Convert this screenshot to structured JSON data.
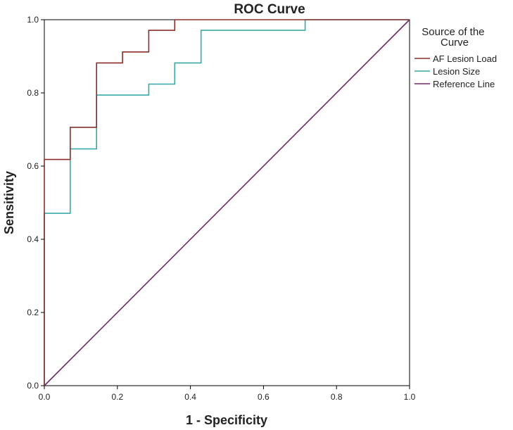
{
  "chart_data": {
    "type": "line",
    "title": "ROC Curve",
    "xlabel": "1 - Specificity",
    "ylabel": "Sensitivity",
    "xlim": [
      0,
      1
    ],
    "ylim": [
      0,
      1
    ],
    "x_ticks": [
      "0.0",
      "0.2",
      "0.4",
      "0.6",
      "0.8",
      "1.0"
    ],
    "y_ticks": [
      "0.0",
      "0.2",
      "0.4",
      "0.6",
      "0.8",
      "1.0"
    ],
    "grid": false,
    "legend": {
      "title": "Source of the Curve",
      "position": "right",
      "entries": [
        "AF Lesion Load",
        "Lesion Size",
        "Reference Line"
      ]
    },
    "series": [
      {
        "name": "AF Lesion Load",
        "color": "#8b2e2a",
        "step": true,
        "x": [
          0.0,
          0.0,
          0.071,
          0.071,
          0.143,
          0.143,
          0.214,
          0.214,
          0.286,
          0.286,
          0.357,
          0.357,
          1.0
        ],
        "y": [
          0.0,
          0.618,
          0.618,
          0.706,
          0.706,
          0.882,
          0.882,
          0.912,
          0.912,
          0.971,
          0.971,
          1.0,
          1.0
        ]
      },
      {
        "name": "Lesion Size",
        "color": "#3aa8a8",
        "step": true,
        "x": [
          0.0,
          0.0,
          0.071,
          0.071,
          0.143,
          0.143,
          0.286,
          0.286,
          0.357,
          0.357,
          0.429,
          0.429,
          0.714,
          0.714,
          1.0
        ],
        "y": [
          0.0,
          0.471,
          0.471,
          0.647,
          0.647,
          0.794,
          0.794,
          0.824,
          0.824,
          0.882,
          0.882,
          0.971,
          0.971,
          1.0,
          1.0
        ]
      },
      {
        "name": "Reference Line",
        "color": "#6b2a63",
        "step": false,
        "x": [
          0.0,
          1.0
        ],
        "y": [
          0.0,
          1.0
        ]
      }
    ]
  }
}
